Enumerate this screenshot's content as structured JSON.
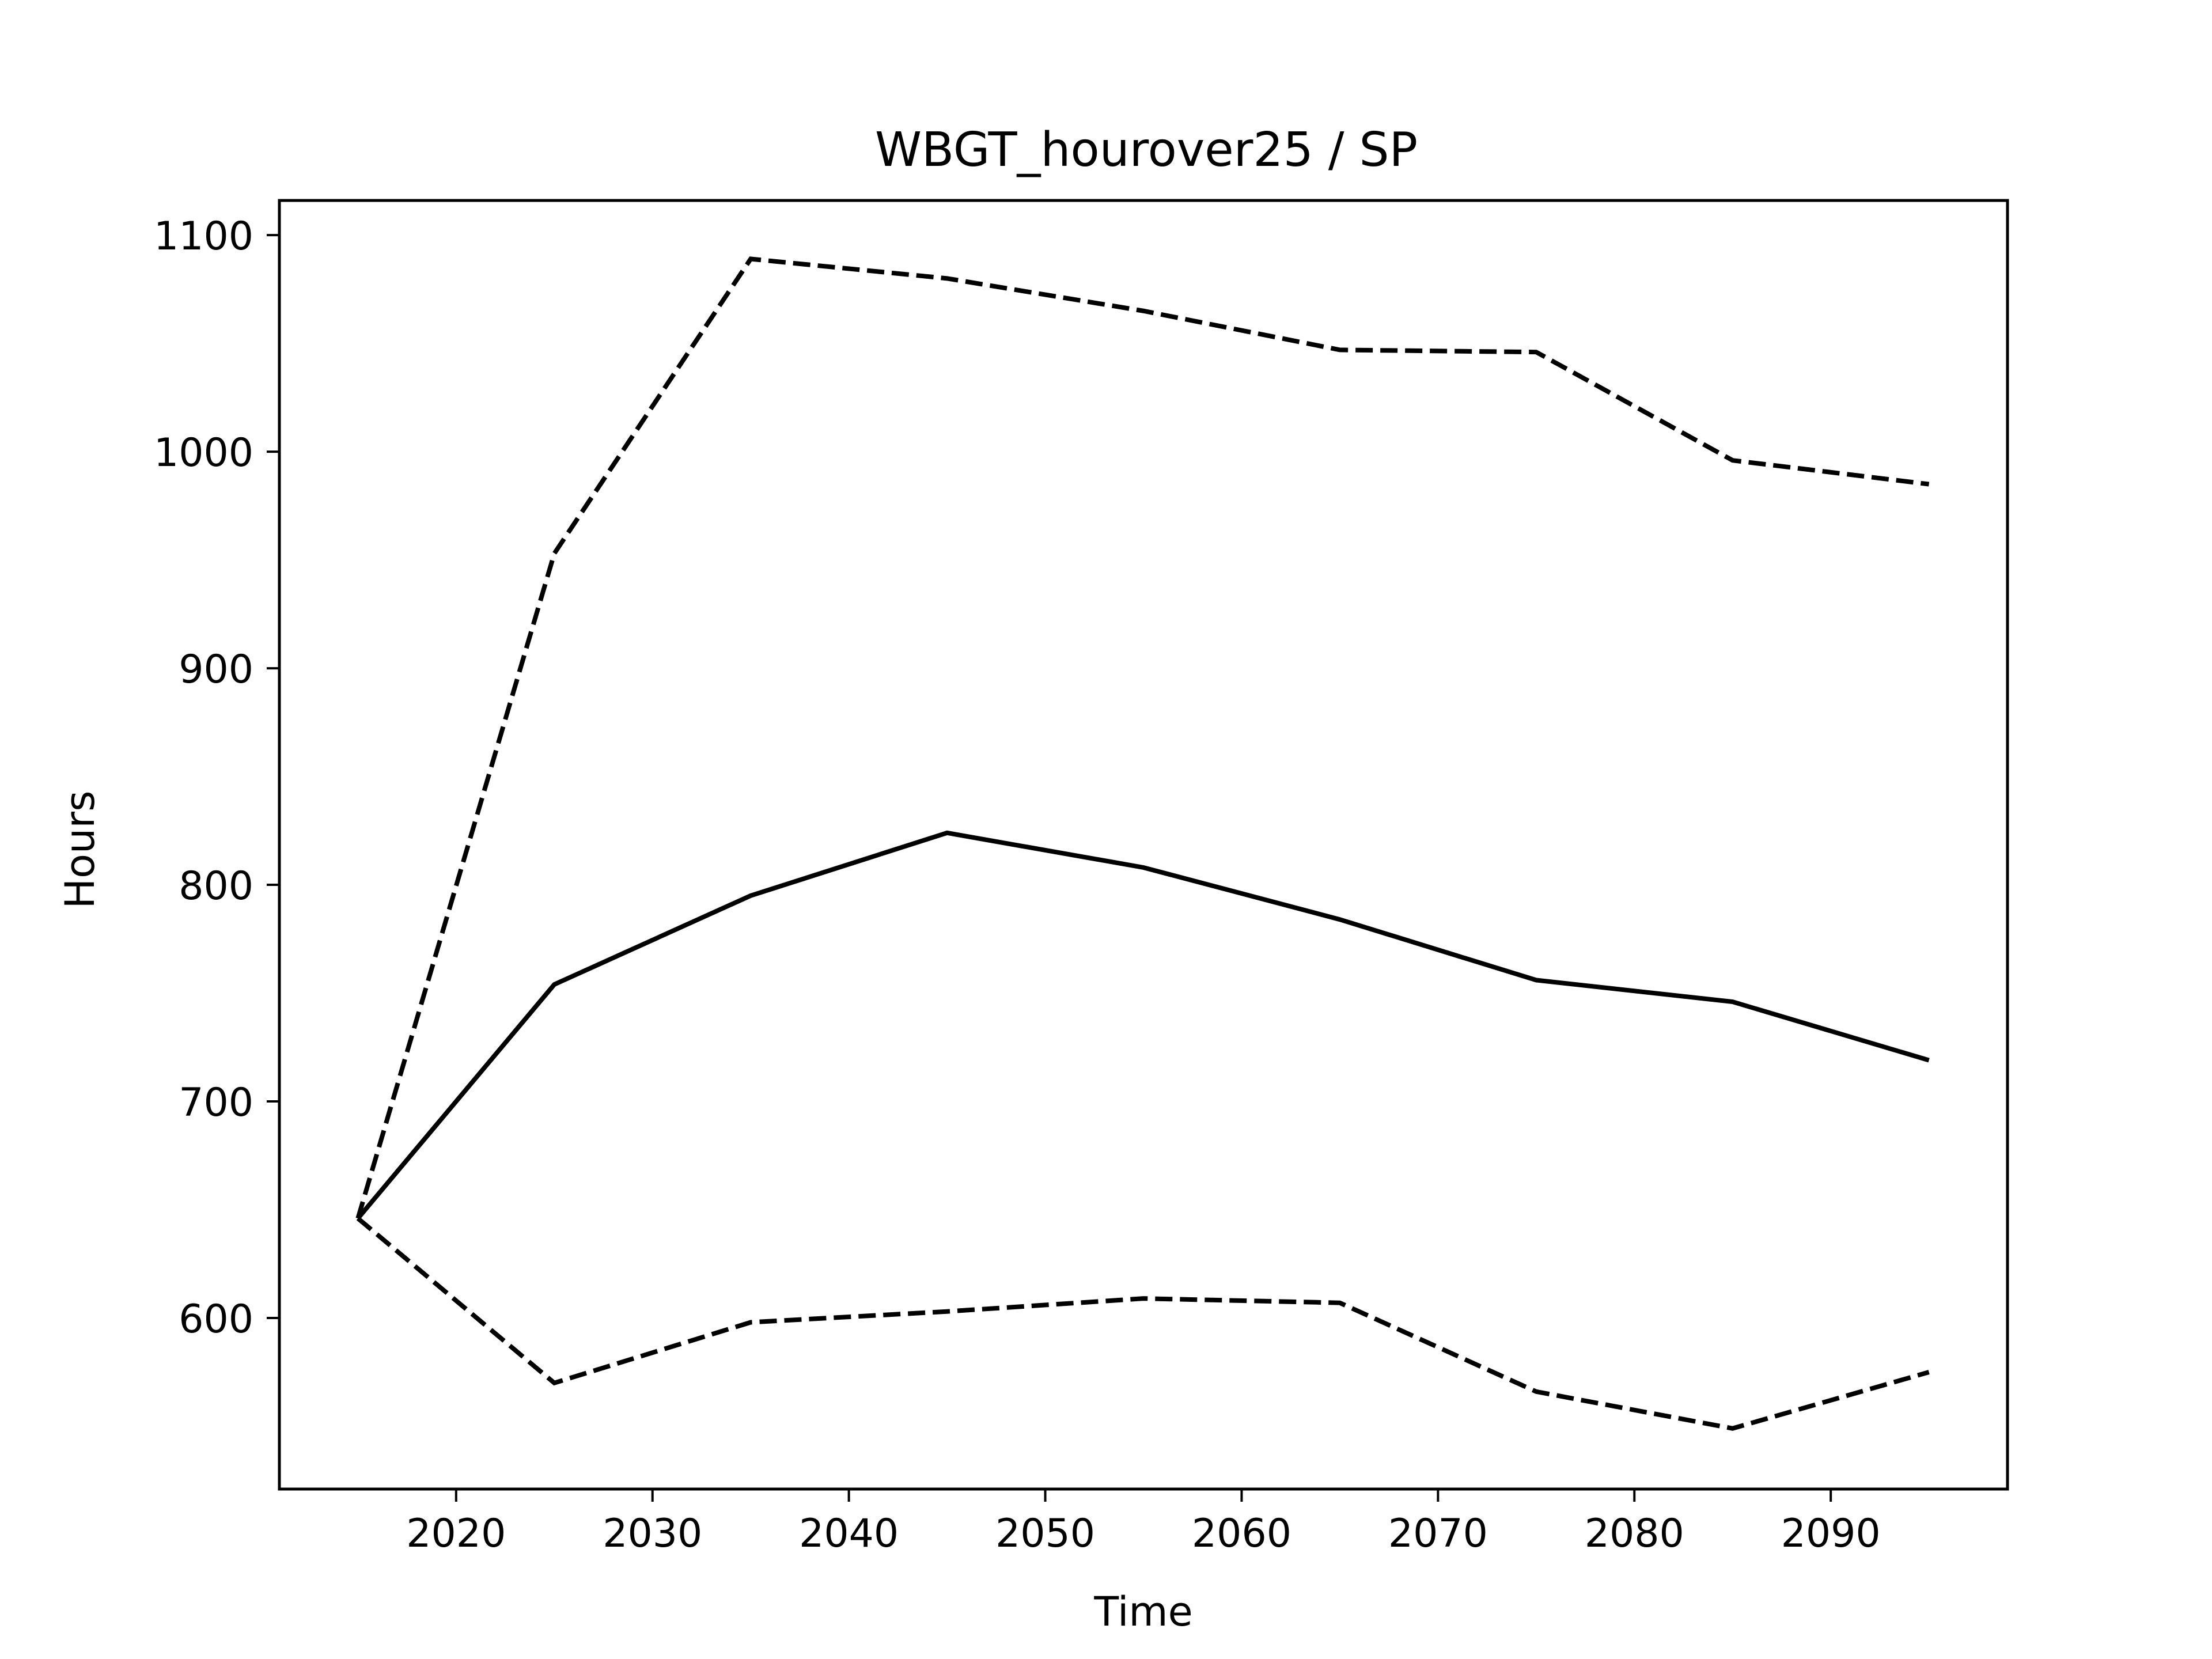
{
  "chart_data": {
    "type": "line",
    "title": "WBGT_hourover25 / SP",
    "xlabel": "Time",
    "ylabel": "Hours",
    "x": [
      2015,
      2025,
      2035,
      2045,
      2055,
      2065,
      2075,
      2085,
      2095
    ],
    "xlim": [
      2011,
      2099
    ],
    "ylim": [
      521,
      1116
    ],
    "xticks": [
      2020,
      2030,
      2040,
      2050,
      2060,
      2070,
      2080,
      2090
    ],
    "yticks": [
      600,
      700,
      800,
      900,
      1000,
      1100
    ],
    "grid": false,
    "legend": "none",
    "series": [
      {
        "style": "solid",
        "color": "#000000",
        "values": [
          646,
          754,
          795,
          824,
          808,
          784,
          756,
          746,
          719
        ]
      },
      {
        "style": "dashed",
        "color": "#000000",
        "values": [
          646,
          953,
          1089,
          1080,
          1065,
          1047,
          1046,
          996,
          985
        ]
      },
      {
        "style": "dashed",
        "color": "#000000",
        "values": [
          646,
          570,
          598,
          603,
          609,
          607,
          566,
          549,
          575
        ]
      }
    ]
  }
}
